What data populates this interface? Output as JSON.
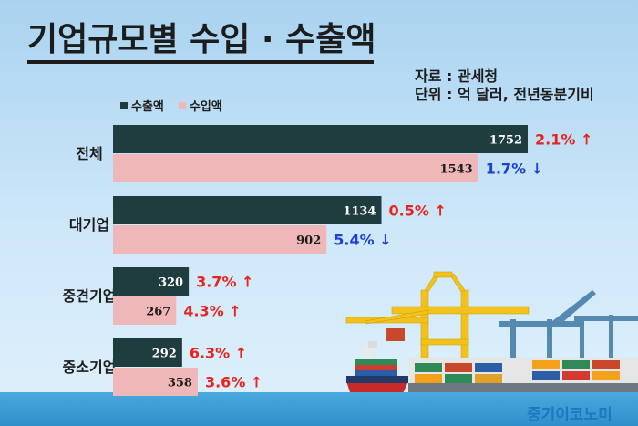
{
  "title": "기업규모별 수입 · 수출액",
  "source": "자료 : 관세청",
  "unit": "단위 : 억 달러, 전년동분기비",
  "brand": "중기이코노미",
  "colors": {
    "export": "#1f3c3f",
    "import": "#efb7b7",
    "up": "#e8231f",
    "down": "#1c3fd6",
    "title_bar": "#1c1c1c"
  },
  "chart_data": {
    "type": "bar",
    "orientation": "horizontal",
    "categories": [
      "전체",
      "대기업",
      "중견기업",
      "중소기업"
    ],
    "series": [
      {
        "name": "수출액",
        "values": [
          1752,
          1134,
          320,
          292
        ]
      },
      {
        "name": "수입액",
        "values": [
          1543,
          902,
          267,
          358
        ]
      }
    ],
    "changes": {
      "수출액": [
        {
          "text": "2.1%",
          "arrow": "↑",
          "dir": "up"
        },
        {
          "text": "0.5%",
          "arrow": "↑",
          "dir": "up"
        },
        {
          "text": "3.7%",
          "arrow": "↑",
          "dir": "up"
        },
        {
          "text": "6.3%",
          "arrow": "↑",
          "dir": "up"
        }
      ],
      "수입액": [
        {
          "text": "1.7%",
          "arrow": "↓",
          "dir": "down"
        },
        {
          "text": "5.4%",
          "arrow": "↓",
          "dir": "down"
        },
        {
          "text": "4.3%",
          "arrow": "↑",
          "dir": "up"
        },
        {
          "text": "3.6%",
          "arrow": "↑",
          "dir": "up"
        }
      ]
    },
    "legend": "top-left",
    "grid": false
  }
}
